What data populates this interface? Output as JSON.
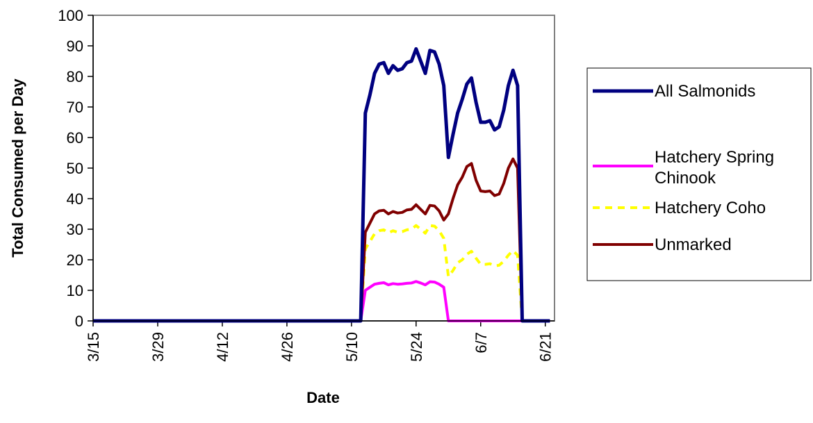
{
  "chart_data": {
    "type": "line",
    "xlabel": "Date",
    "ylabel": "Total Consumed per Day",
    "ylim": [
      0,
      100
    ],
    "yticks": [
      0,
      10,
      20,
      30,
      40,
      50,
      60,
      70,
      80,
      90,
      100
    ],
    "xlim": [
      "3/15",
      "6/23"
    ],
    "xticks": [
      "3/15",
      "3/29",
      "4/12",
      "4/26",
      "5/10",
      "5/24",
      "6/7",
      "6/21"
    ],
    "legend_position": "right",
    "grid": false,
    "series": [
      {
        "name": "All Salmonids",
        "color": "#000080",
        "style": "solid-thick",
        "points": [
          [
            "3/15",
            0
          ],
          [
            "5/12",
            0
          ],
          [
            "5/13",
            68
          ],
          [
            "5/14",
            74
          ],
          [
            "5/15",
            81
          ],
          [
            "5/16",
            84
          ],
          [
            "5/17",
            84.5
          ],
          [
            "5/18",
            81
          ],
          [
            "5/19",
            83.5
          ],
          [
            "5/20",
            82
          ],
          [
            "5/21",
            82.5
          ],
          [
            "5/22",
            84.5
          ],
          [
            "5/23",
            85
          ],
          [
            "5/24",
            89
          ],
          [
            "5/25",
            85
          ],
          [
            "5/26",
            81
          ],
          [
            "5/27",
            88.5
          ],
          [
            "5/28",
            88
          ],
          [
            "5/29",
            84
          ],
          [
            "5/30",
            77
          ],
          [
            "5/31",
            53.5
          ],
          [
            "6/1",
            61
          ],
          [
            "6/2",
            68
          ],
          [
            "6/3",
            72.5
          ],
          [
            "6/4",
            77.5
          ],
          [
            "6/5",
            79.5
          ],
          [
            "6/6",
            71.5
          ],
          [
            "6/7",
            65
          ],
          [
            "6/8",
            65
          ],
          [
            "6/9",
            65.5
          ],
          [
            "6/10",
            62.5
          ],
          [
            "6/11",
            63.5
          ],
          [
            "6/12",
            69
          ],
          [
            "6/13",
            77
          ],
          [
            "6/14",
            82
          ],
          [
            "6/15",
            77
          ],
          [
            "6/16",
            0
          ],
          [
            "6/22",
            0
          ]
        ]
      },
      {
        "name": "Hatchery Spring Chinook",
        "color": "#ff00ff",
        "style": "solid",
        "points": [
          [
            "3/15",
            0
          ],
          [
            "5/12",
            0
          ],
          [
            "5/13",
            10
          ],
          [
            "5/14",
            11
          ],
          [
            "5/15",
            12
          ],
          [
            "5/16",
            12.3
          ],
          [
            "5/17",
            12.5
          ],
          [
            "5/18",
            11.8
          ],
          [
            "5/19",
            12.2
          ],
          [
            "5/20",
            12
          ],
          [
            "5/21",
            12.1
          ],
          [
            "5/22",
            12.3
          ],
          [
            "5/23",
            12.4
          ],
          [
            "5/24",
            12.9
          ],
          [
            "5/25",
            12.4
          ],
          [
            "5/26",
            11.8
          ],
          [
            "5/27",
            12.8
          ],
          [
            "5/28",
            12.7
          ],
          [
            "5/29",
            12
          ],
          [
            "5/30",
            11
          ],
          [
            "5/31",
            0
          ],
          [
            "6/15",
            0
          ],
          [
            "6/16",
            0
          ],
          [
            "6/22",
            0
          ]
        ]
      },
      {
        "name": "Hatchery Coho",
        "color": "#ffff00",
        "style": "dashed",
        "points": [
          [
            "3/15",
            0
          ],
          [
            "5/12",
            0
          ],
          [
            "5/13",
            23.5
          ],
          [
            "5/14",
            26
          ],
          [
            "5/15",
            28.5
          ],
          [
            "5/16",
            29.5
          ],
          [
            "5/17",
            29.8
          ],
          [
            "5/18",
            28.8
          ],
          [
            "5/19",
            29.5
          ],
          [
            "5/20",
            29
          ],
          [
            "5/21",
            29.2
          ],
          [
            "5/22",
            29.8
          ],
          [
            "5/23",
            30
          ],
          [
            "5/24",
            31.2
          ],
          [
            "5/25",
            30
          ],
          [
            "5/26",
            28.7
          ],
          [
            "5/27",
            31.2
          ],
          [
            "5/28",
            31
          ],
          [
            "5/29",
            29.5
          ],
          [
            "5/30",
            27
          ],
          [
            "5/31",
            14.5
          ],
          [
            "6/1",
            16.5
          ],
          [
            "6/2",
            19
          ],
          [
            "6/3",
            20
          ],
          [
            "6/4",
            21.8
          ],
          [
            "6/5",
            22.8
          ],
          [
            "6/6",
            20.5
          ],
          [
            "6/7",
            18.5
          ],
          [
            "6/8",
            18.5
          ],
          [
            "6/9",
            18.7
          ],
          [
            "6/10",
            18
          ],
          [
            "6/11",
            18.2
          ],
          [
            "6/12",
            19.5
          ],
          [
            "6/13",
            21.5
          ],
          [
            "6/14",
            23
          ],
          [
            "6/15",
            21.5
          ],
          [
            "6/16",
            0
          ],
          [
            "6/22",
            0
          ]
        ]
      },
      {
        "name": "Unmarked",
        "color": "#800000",
        "style": "solid",
        "points": [
          [
            "3/15",
            0
          ],
          [
            "5/12",
            0
          ],
          [
            "5/13",
            29
          ],
          [
            "5/14",
            32
          ],
          [
            "5/15",
            35
          ],
          [
            "5/16",
            36
          ],
          [
            "5/17",
            36.2
          ],
          [
            "5/18",
            35
          ],
          [
            "5/19",
            35.8
          ],
          [
            "5/20",
            35.3
          ],
          [
            "5/21",
            35.5
          ],
          [
            "5/22",
            36.3
          ],
          [
            "5/23",
            36.5
          ],
          [
            "5/24",
            38
          ],
          [
            "5/25",
            36.5
          ],
          [
            "5/26",
            35
          ],
          [
            "5/27",
            37.8
          ],
          [
            "5/28",
            37.6
          ],
          [
            "5/29",
            36
          ],
          [
            "5/30",
            33
          ],
          [
            "5/31",
            35
          ],
          [
            "6/1",
            40
          ],
          [
            "6/2",
            44.5
          ],
          [
            "6/3",
            47
          ],
          [
            "6/4",
            50.5
          ],
          [
            "6/5",
            51.5
          ],
          [
            "6/6",
            46
          ],
          [
            "6/7",
            42.5
          ],
          [
            "6/8",
            42.3
          ],
          [
            "6/9",
            42.5
          ],
          [
            "6/10",
            41
          ],
          [
            "6/11",
            41.5
          ],
          [
            "6/12",
            45
          ],
          [
            "6/13",
            50
          ],
          [
            "6/14",
            53
          ],
          [
            "6/15",
            50
          ],
          [
            "6/16",
            0
          ],
          [
            "6/22",
            0
          ]
        ]
      }
    ]
  }
}
